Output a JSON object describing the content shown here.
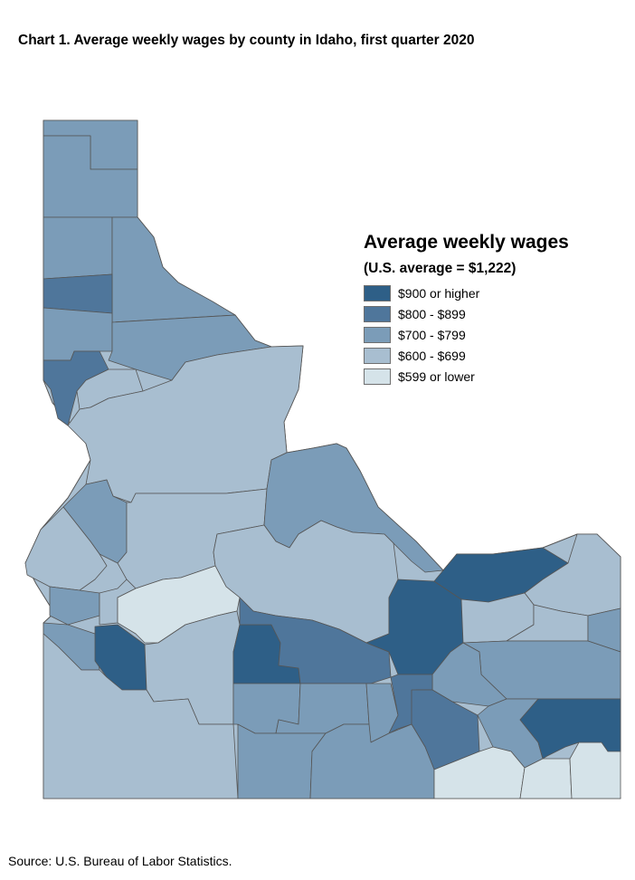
{
  "title": "Chart 1. Average weekly wages by county in Idaho, first quarter 2020",
  "legend": {
    "title": "Average weekly wages",
    "subtitle": "(U.S. average = $1,222)",
    "classes": [
      {
        "label": "$900 or higher",
        "color": "#2e5f87"
      },
      {
        "label": "$800 - $899",
        "color": "#4f769b"
      },
      {
        "label": "$700 - $799",
        "color": "#7b9cb8"
      },
      {
        "label": "$600 - $699",
        "color": "#a8bed0"
      },
      {
        "label": "$599 or lower",
        "color": "#d5e3e9"
      }
    ]
  },
  "source": "Source: U.S. Bureau of Labor Statistics.",
  "colors": {
    "border": "#555555"
  }
}
